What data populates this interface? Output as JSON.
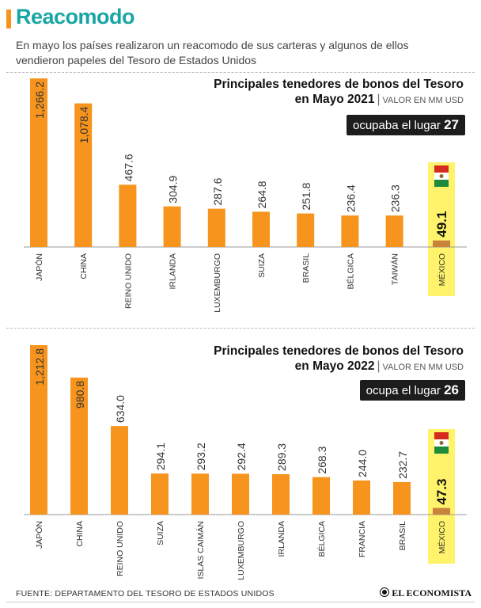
{
  "header": {
    "title": "Reacomodo",
    "intro": "En mayo los países realizaron un reacomodo de sus carteras y algunos de ellos vendieron papeles del Tesoro de Estados Unidos"
  },
  "colors": {
    "accent": "#f7941d",
    "teal": "#18a6a4",
    "mexico_bar": "#c8843a",
    "highlight": "#fff36b"
  },
  "chart_data": [
    {
      "type": "bar",
      "title": "Principales tenedores de bonos del Tesoro en Mayo 2021",
      "title_line1": "Principales tenedores de bonos del Tesoro",
      "title_line2": "en Mayo 2021",
      "units": "VALOR EN MM USD",
      "rank_text": "ocupaba el lugar",
      "rank_number": "27",
      "categories": [
        "JAPÓN",
        "CHINA",
        "REINO UNIDO",
        "IRLANDA",
        "LUXEMBURGO",
        "SUIZA",
        "BRASIL",
        "BÉLGICA",
        "TAIWÁN",
        "MÉXICO"
      ],
      "values": [
        1266.2,
        1078.4,
        467.6,
        304.9,
        287.6,
        264.8,
        251.8,
        236.4,
        236.3,
        49.1
      ],
      "labels": [
        "1,266.2",
        "1,078.4",
        "467.6",
        "304.9",
        "287.6",
        "264.8",
        "251.8",
        "236.4",
        "236.3",
        "49.1"
      ],
      "highlight": "MÉXICO",
      "ylim": [
        0,
        1266.2
      ]
    },
    {
      "type": "bar",
      "title": "Principales tenedores de bonos del Tesoro en Mayo 2022",
      "title_line1": "Principales tenedores de bonos del Tesoro",
      "title_line2": "en Mayo 2022",
      "units": "VALOR EN MM USD",
      "rank_text": "ocupa el lugar",
      "rank_number": "26",
      "categories": [
        "JAPÓN",
        "CHINA",
        "REINO UNIDO",
        "SUIZA",
        "ISLAS CAIMÁN",
        "LUXEMBURGO",
        "IRLANDA",
        "BÉLGICA",
        "FRANCIA",
        "BRASIL",
        "MÉXICO"
      ],
      "values": [
        1212.8,
        980.8,
        634.0,
        294.1,
        293.2,
        292.4,
        289.3,
        268.3,
        244.0,
        232.7,
        47.3
      ],
      "labels": [
        "1,212.8",
        "980.8",
        "634.0",
        "294.1",
        "293.2",
        "292.4",
        "289.3",
        "268.3",
        "244.0",
        "232.7",
        "47.3"
      ],
      "highlight": "MÉXICO",
      "ylim": [
        0,
        1212.8
      ]
    }
  ],
  "footer": {
    "source": "FUENTE: DEPARTAMENTO DEL TESORO DE ESTADOS UNIDOS",
    "brand": "EL ECONOMISTA"
  }
}
